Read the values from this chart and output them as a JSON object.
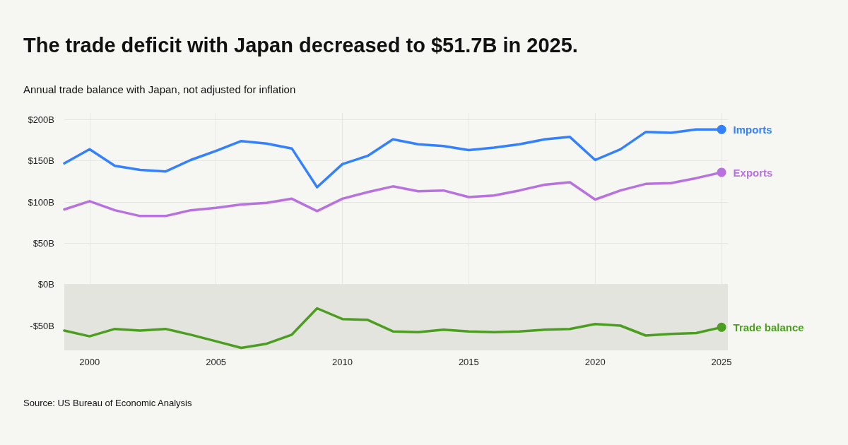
{
  "chart_data": {
    "type": "line",
    "title": "The trade deficit with Japan decreased to $51.7B in 2025.",
    "subtitle": "Annual trade balance with Japan, not adjusted for inflation",
    "annotations": [
      "Source: US Bureau of Economic Analysis"
    ],
    "x": [
      1999,
      2000,
      2001,
      2002,
      2003,
      2004,
      2005,
      2006,
      2007,
      2008,
      2009,
      2010,
      2011,
      2012,
      2013,
      2014,
      2015,
      2016,
      2017,
      2018,
      2019,
      2020,
      2021,
      2022,
      2023,
      2024,
      2025
    ],
    "series": [
      {
        "name": "Imports",
        "color": "#3381ff",
        "values": [
          147,
          164,
          144,
          139,
          137,
          151,
          162,
          174,
          171,
          165,
          118,
          146,
          156,
          176,
          170,
          168,
          163,
          166,
          170,
          176,
          179,
          151,
          164,
          185,
          184,
          188,
          188
        ]
      },
      {
        "name": "Exports",
        "color": "#b872df",
        "values": [
          91,
          101,
          90,
          83,
          83,
          90,
          93,
          97,
          99,
          104,
          89,
          104,
          112,
          119,
          113,
          114,
          106,
          108,
          114,
          121,
          124,
          103,
          114,
          122,
          123,
          129,
          136
        ]
      },
      {
        "name": "Trade balance",
        "color": "#4c9e20",
        "values": [
          -56,
          -63,
          -54,
          -56,
          -54,
          -61,
          -69,
          -77,
          -72,
          -61,
          -29,
          -42,
          -43,
          -57,
          -58,
          -55,
          -57,
          -58,
          -57,
          -55,
          -54,
          -48,
          -50,
          -62,
          -60,
          -59,
          -52
        ]
      }
    ],
    "xlim": [
      1999,
      2025.25
    ],
    "xticks": [
      2000,
      2005,
      2010,
      2015,
      2020,
      2025
    ],
    "ylim": [
      -80,
      208
    ],
    "yticks": [
      {
        "value": -50,
        "label": "-$50B"
      },
      {
        "value": 0,
        "label": "$0B"
      },
      {
        "value": 50,
        "label": "$50B"
      },
      {
        "value": 100,
        "label": "$100B"
      },
      {
        "value": 150,
        "label": "$150B"
      },
      {
        "value": 200,
        "label": "$200B"
      }
    ],
    "bands": [
      {
        "axis": "y",
        "from": -80,
        "to": 0,
        "color": "#e4e4df"
      }
    ],
    "grid": true,
    "legend": false,
    "line_style": "solid"
  }
}
